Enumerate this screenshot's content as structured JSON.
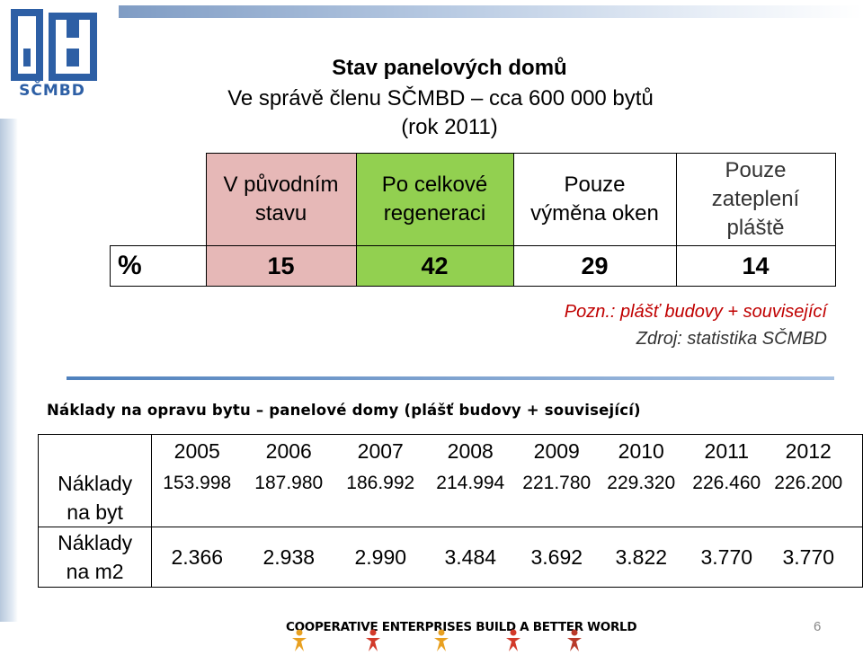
{
  "logo": {
    "text": "SČMBD"
  },
  "title": {
    "line1": "Stav panelových domů",
    "line2": "Ve správě členu SČMBD – cca 600 000 bytů",
    "line3": "(rok 2011)"
  },
  "status_table": {
    "row_label": "%",
    "columns": [
      {
        "header": [
          "V původním",
          "stavu"
        ],
        "value": "15",
        "color": "#e6b8b7"
      },
      {
        "header": [
          "Po celkové",
          "regeneraci"
        ],
        "value": "42",
        "color": "#92d050"
      },
      {
        "header": [
          "Pouze",
          "výměna oken"
        ],
        "value": "29",
        "color": "#ffffff"
      },
      {
        "header": [
          "Pouze",
          "zateplení",
          "pláště"
        ],
        "value": "14",
        "color": "#ffffff"
      }
    ]
  },
  "notes": {
    "note": "Pozn.: plášť budovy + související",
    "source": "Zdroj: statistika SČMBD"
  },
  "costs": {
    "title": "Náklady  na opravu bytu – panelové domy (plášť budovy + související)",
    "years": [
      "2005",
      "2006",
      "2007",
      "2008",
      "2009",
      "2010",
      "2011",
      "2012"
    ],
    "rows": [
      {
        "label": [
          "Náklady",
          "na byt"
        ],
        "values": [
          "153.998",
          "187.980",
          "186.992",
          "214.994",
          "221.780",
          "229.320",
          "226.460",
          "226.200"
        ]
      },
      {
        "label": [
          "Náklady",
          "na m2"
        ],
        "values": [
          "2.366",
          "2.938",
          "2.990",
          "3.484",
          "3.692",
          "3.822",
          "3.770",
          "3.770"
        ]
      }
    ]
  },
  "footer": {
    "banner": "COOPERATIVE ENTERPRISES BUILD A BETTER WORLD",
    "page_number": "6"
  }
}
